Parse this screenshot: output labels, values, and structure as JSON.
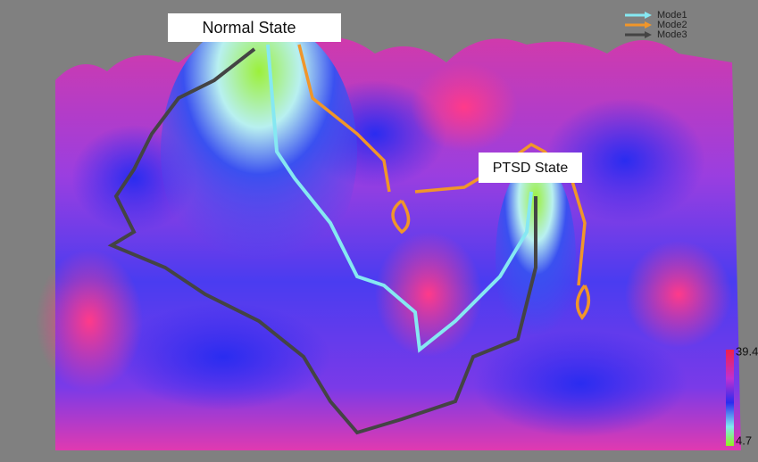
{
  "labels": {
    "normal_state": "Normal State",
    "ptsd_state": "PTSD State"
  },
  "legend": [
    {
      "name": "Mode1",
      "color": "#86e8f2"
    },
    {
      "name": "Mode2",
      "color": "#f0962a"
    },
    {
      "name": "Mode3",
      "color": "#444444"
    }
  ],
  "colorbar": {
    "max": 39.4,
    "min": 4.7
  }
}
